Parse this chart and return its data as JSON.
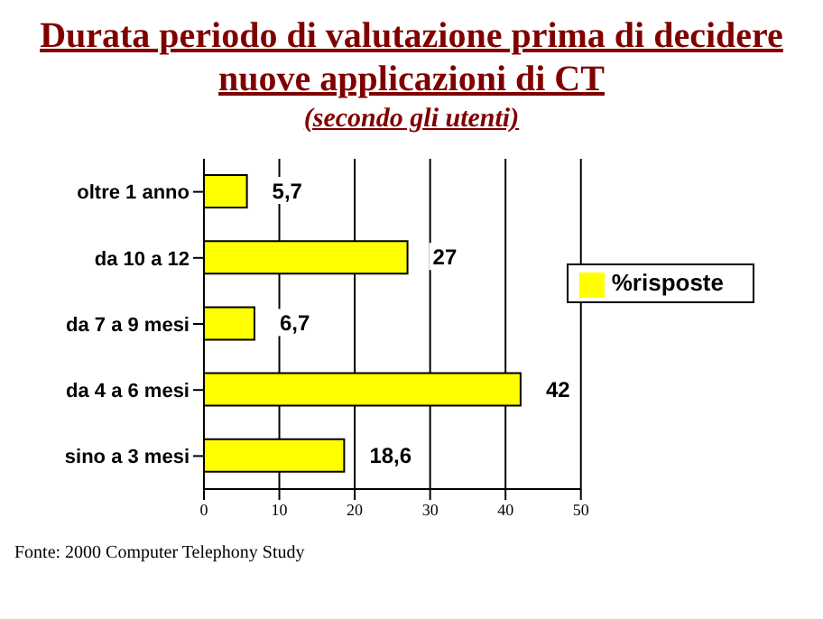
{
  "chart_data": {
    "type": "bar",
    "orientation": "horizontal",
    "title": "Durata periodo di valutazione prima di decidere nuove applicazioni di CT",
    "subtitle": "(secondo gli utenti)",
    "categories": [
      "oltre 1 anno",
      "da 10 a 12",
      "da 7 a 9 mesi",
      "da 4 a 6 mesi",
      "sino a 3 mesi"
    ],
    "series": [
      {
        "name": "%risposte",
        "color": "#ffff00",
        "values": [
          5.7,
          27,
          6.7,
          42,
          18.6
        ],
        "value_labels": [
          "5,7",
          "27",
          "6,7",
          "42",
          "18,6"
        ]
      }
    ],
    "xlim": [
      0,
      50
    ],
    "xticks": [
      0,
      10,
      20,
      30,
      40,
      50
    ],
    "grid": "x",
    "legend": "right",
    "annotations": [
      "Fonte: 2000 Computer Telephony Study"
    ]
  }
}
